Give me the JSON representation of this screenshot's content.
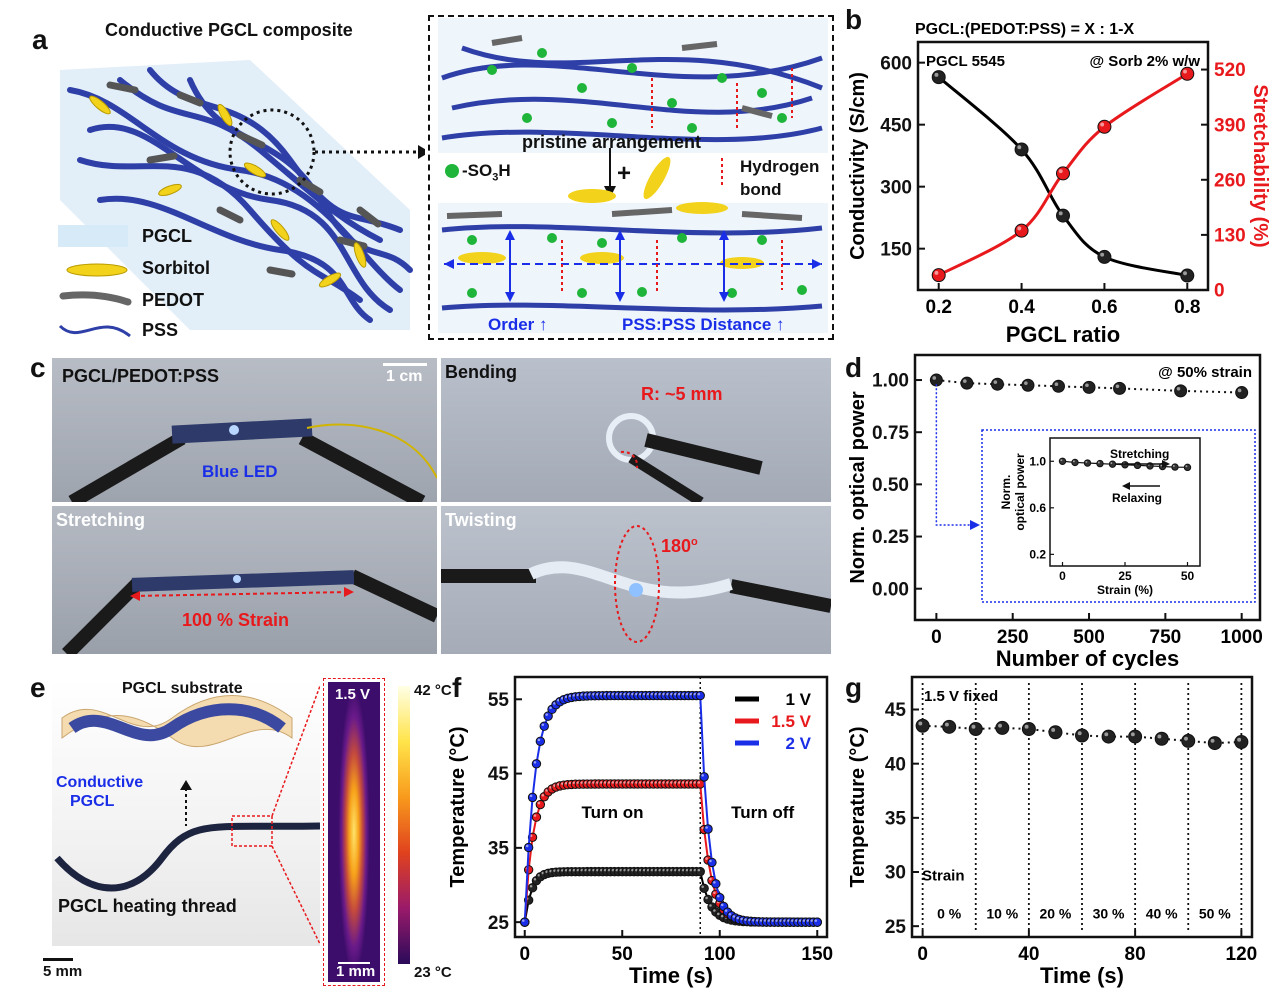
{
  "panel_labels": {
    "a": "a",
    "b": "b",
    "c": "c",
    "d": "d",
    "e": "e",
    "f": "f",
    "g": "g"
  },
  "panel_a": {
    "title": "Conductive PGCL composite",
    "legend": [
      "PGCL",
      "Sorbitol",
      "PEDOT",
      "PSS"
    ],
    "inset": {
      "pristine": "pristine arrangement",
      "plus": "+",
      "so3h_prefix": "-SO",
      "so3h_sub1": "3",
      "so3h_suffix": "H",
      "hbond_line1": "Hydrogen",
      "hbond_line2": "bond",
      "order": "Order ↑",
      "distance": "PSS:PSS Distance ↑"
    }
  },
  "panel_c": {
    "tiles": {
      "t1": "PGCL/PEDOT:PSS",
      "scale": "1 cm",
      "led": "Blue LED",
      "t2": "Bending",
      "radius": "R: ~5 mm",
      "t3": "Stretching",
      "strain": "100 % Strain",
      "t4": "Twisting",
      "angle": "180",
      "angle_sup": "o"
    }
  },
  "panel_e": {
    "substrate": "PGCL substrate",
    "conductive1": "Conductive",
    "conductive2": "PGCL",
    "thread": "PGCL heating thread",
    "scale_left": "5 mm",
    "ir_voltage": "1.5 V",
    "ir_scale": "1 mm",
    "cbar_max": "42 °C",
    "cbar_min": "23 °C"
  },
  "chart_data": [
    {
      "id": "b",
      "type": "scatter",
      "title": "PGCL:(PEDOT:PSS) = X : 1-X",
      "annotations": [
        "PGCL 5545",
        "@ Sorb 2% w/w"
      ],
      "xlabel": "PGCL ratio",
      "ylabel": "Conductivity (S/cm)",
      "y2label": "Stretchability (%)",
      "xlim": [
        0.15,
        0.85
      ],
      "ylim": [
        50,
        650
      ],
      "y2lim": [
        0,
        585
      ],
      "xticks": [
        0.2,
        0.4,
        0.6,
        0.8
      ],
      "yticks": [
        150,
        300,
        450,
        600
      ],
      "y2ticks": [
        0,
        130,
        260,
        390,
        520
      ],
      "series": [
        {
          "axis": "left",
          "color": "#000000",
          "x": [
            0.2,
            0.4,
            0.5,
            0.6,
            0.8
          ],
          "values": [
            565,
            390,
            230,
            130,
            85
          ]
        },
        {
          "axis": "right",
          "color": "#e8191c",
          "x": [
            0.2,
            0.4,
            0.5,
            0.6,
            0.8
          ],
          "values": [
            35,
            140,
            275,
            385,
            510
          ]
        }
      ]
    },
    {
      "id": "d",
      "type": "scatter",
      "annotation": "@ 50% strain",
      "xlabel": "Number of cycles",
      "ylabel": "Norm. optical power",
      "xlim": [
        -70,
        1060
      ],
      "ylim": [
        -0.15,
        1.12
      ],
      "xticks": [
        0,
        250,
        500,
        750,
        1000
      ],
      "yticks": [
        0.0,
        0.25,
        0.5,
        0.75,
        1.0
      ],
      "x": [
        0,
        100,
        200,
        300,
        400,
        500,
        600,
        800,
        1000
      ],
      "values": [
        1.0,
        0.985,
        0.98,
        0.975,
        0.97,
        0.965,
        0.96,
        0.948,
        0.94
      ],
      "inset": {
        "xlabel": "Strain (%)",
        "ylabel1": "Norm.",
        "ylabel2": "optical power",
        "xlim": [
          -5,
          55
        ],
        "ylim": [
          0.1,
          1.2
        ],
        "xticks": [
          0,
          25,
          50
        ],
        "yticks": [
          0.2,
          0.6,
          1.0
        ],
        "x": [
          0,
          5,
          10,
          15,
          20,
          25,
          30,
          35,
          40,
          45,
          50
        ],
        "values": [
          1.0,
          0.99,
          0.985,
          0.98,
          0.975,
          0.97,
          0.965,
          0.96,
          0.955,
          0.95,
          0.948
        ],
        "stretching": "Stretching",
        "relaxing": "Relaxing"
      }
    },
    {
      "id": "f",
      "type": "line",
      "xlabel": "Time (s)",
      "ylabel": "Temperature (°C)",
      "xlim": [
        -5,
        155
      ],
      "ylim": [
        23,
        58
      ],
      "xticks": [
        0,
        50,
        100,
        150
      ],
      "yticks": [
        25,
        35,
        45,
        55
      ],
      "annotations": [
        "Turn on",
        "Turn off"
      ],
      "switch_off_time": 90,
      "series": [
        {
          "name": "1 V",
          "color": "#000000",
          "plateau": 31.8,
          "rise": 3.5,
          "fall": 5.0
        },
        {
          "name": "1.5 V",
          "color": "#e8191c",
          "plateau": 43.6,
          "rise": 4.2,
          "fall": 5.0
        },
        {
          "name": "2 V",
          "color": "#1a2ee8",
          "plateau": 55.5,
          "rise": 5.0,
          "fall": 4.5
        }
      ],
      "baseline": 25
    },
    {
      "id": "g",
      "type": "scatter",
      "annotation": "1.5 V fixed",
      "strain_title": "Strain",
      "xlabel": "Time (s)",
      "ylabel": "Temperature (°C)",
      "xlim": [
        -4,
        124
      ],
      "ylim": [
        24,
        48
      ],
      "xticks": [
        0,
        40,
        80,
        120
      ],
      "yticks": [
        25,
        30,
        35,
        40,
        45
      ],
      "x": [
        0,
        10,
        20,
        30,
        40,
        50,
        60,
        70,
        80,
        90,
        100,
        110,
        120
      ],
      "values": [
        43.5,
        43.4,
        43.2,
        43.3,
        43.2,
        42.9,
        42.6,
        42.5,
        42.5,
        42.3,
        42.1,
        41.9,
        42.0
      ],
      "strain_segments": [
        {
          "label": "0 %",
          "x": 10
        },
        {
          "label": "10 %",
          "x": 30
        },
        {
          "label": "20 %",
          "x": 50
        },
        {
          "label": "30 %",
          "x": 70
        },
        {
          "label": "40 %",
          "x": 90
        },
        {
          "label": "50 %",
          "x": 110
        }
      ],
      "dividers": [
        0,
        20,
        40,
        60,
        80,
        100,
        120
      ]
    }
  ]
}
